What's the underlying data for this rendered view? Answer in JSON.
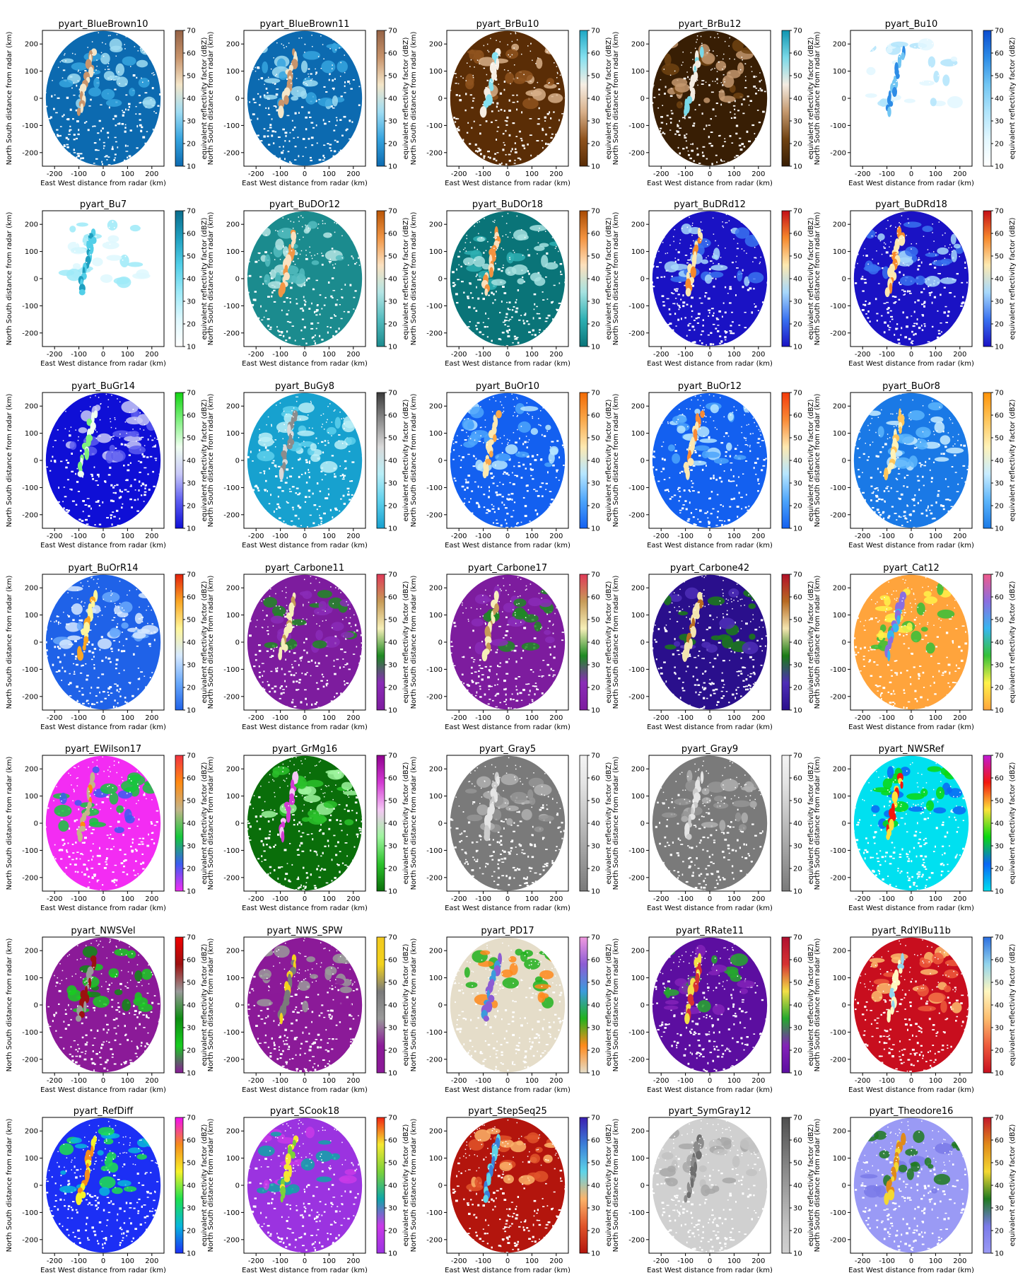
{
  "figure": {
    "xlabel": "East West distance from radar (km)",
    "ylabel": "North South distance from radar (km)",
    "colorbar_label": "equivalent reflectivity factor (dBZ)"
  },
  "chart_data": {
    "type": "heatmap",
    "description_of_field": "PPI radar reflectivity sweep rendered with 35 pyart colormaps",
    "xlim": [
      -250,
      250
    ],
    "ylim": [
      -250,
      250
    ],
    "xticks": [
      -200,
      -100,
      0,
      100,
      200
    ],
    "yticks": [
      -200,
      -100,
      0,
      100,
      200
    ],
    "xlabel": "East West distance from radar (km)",
    "ylabel": "North South distance from radar (km)",
    "colorbar": {
      "label": "equivalent reflectivity factor (dBZ)",
      "range": [
        10,
        70
      ],
      "ticks": [
        10,
        20,
        30,
        40,
        50,
        60,
        70
      ]
    },
    "panels": [
      {
        "title": "pyart_BlueBrown10",
        "colors": [
          "#0c6ab0",
          "#36a4df",
          "#9fdcf2",
          "#f4e6c9",
          "#c8946c",
          "#946245"
        ]
      },
      {
        "title": "pyart_BlueBrown11",
        "colors": [
          "#0c6ab0",
          "#36a4df",
          "#9fdcf2",
          "#f4e6c9",
          "#c8946c",
          "#946245"
        ]
      },
      {
        "title": "pyart_BrBu10",
        "colors": [
          "#5a2d06",
          "#8f531e",
          "#d8b08a",
          "#f6eee4",
          "#85e0ef",
          "#1ea7c4"
        ]
      },
      {
        "title": "pyart_BrBu12",
        "colors": [
          "#381e04",
          "#704312",
          "#c4986e",
          "#f4ece2",
          "#7ad9e8",
          "#0f95b0"
        ]
      },
      {
        "title": "pyart_Bu10",
        "colors": [
          "#ffffff",
          "#e2f7ff",
          "#b0e4fb",
          "#72c6f3",
          "#2d8ce6",
          "#0b4ccf"
        ]
      },
      {
        "title": "pyart_Bu7",
        "colors": [
          "#ffffff",
          "#def8fe",
          "#9deaf8",
          "#52cfe8",
          "#1f9fbf",
          "#0a6d8c"
        ]
      },
      {
        "title": "pyart_BuDOr12",
        "colors": [
          "#1b8b8e",
          "#54bcbf",
          "#b4e5e4",
          "#fbe1c0",
          "#f19646",
          "#b95506"
        ]
      },
      {
        "title": "pyart_BuDOr18",
        "colors": [
          "#0a7478",
          "#2eb0b3",
          "#a6e2e0",
          "#fde0bc",
          "#f39340",
          "#a84a02"
        ]
      },
      {
        "title": "pyart_BuDRd12",
        "colors": [
          "#1a12c4",
          "#3a72f0",
          "#a7d8fb",
          "#fde9b0",
          "#f6882c",
          "#c40f17"
        ]
      },
      {
        "title": "pyart_BuDRd18",
        "colors": [
          "#1a12c4",
          "#3a72f0",
          "#a7d8fb",
          "#fde9b0",
          "#f6882c",
          "#c40f17"
        ]
      },
      {
        "title": "pyart_BuGr14",
        "colors": [
          "#0f0fd6",
          "#5c5cf0",
          "#c8c8f8",
          "#f0fff0",
          "#7ef07e",
          "#13d413"
        ]
      },
      {
        "title": "pyart_BuGy8",
        "colors": [
          "#17a1cf",
          "#5ed0ec",
          "#b9eef7",
          "#d9d9d9",
          "#8c8c8c",
          "#3b3b3b"
        ]
      },
      {
        "title": "pyart_BuOr10",
        "colors": [
          "#1360f0",
          "#4ca4fb",
          "#b6e6ff",
          "#fde8b0",
          "#f9a84a",
          "#f26a04"
        ]
      },
      {
        "title": "pyart_BuOr12",
        "colors": [
          "#1360f0",
          "#4ca4fb",
          "#b6e6ff",
          "#fde8b0",
          "#f98a36",
          "#f43b0b"
        ]
      },
      {
        "title": "pyart_BuOr8",
        "colors": [
          "#1a79e6",
          "#5cb5fb",
          "#c8ecff",
          "#fff2b8",
          "#ffc55a",
          "#ff9308"
        ]
      },
      {
        "title": "pyart_BuOrR14",
        "colors": [
          "#1f62e8",
          "#6aa9fb",
          "#d6e9ff",
          "#fff69a",
          "#f9a624",
          "#e4200b"
        ]
      },
      {
        "title": "pyart_Carbone11",
        "colors": [
          "#7d1c9e",
          "#8a2cb7",
          "#1e8a22",
          "#f6efb8",
          "#c79b58",
          "#e03a58"
        ]
      },
      {
        "title": "pyart_Carbone17",
        "colors": [
          "#7d1c9e",
          "#8a2cb7",
          "#1e8a22",
          "#f6efb8",
          "#c79b58",
          "#e03a58"
        ]
      },
      {
        "title": "pyart_Carbone42",
        "colors": [
          "#2a0f8c",
          "#4e2eb7",
          "#1b7c16",
          "#f4e5b0",
          "#b76a22",
          "#b21028"
        ]
      },
      {
        "title": "pyart_Cat12",
        "colors": [
          "#ffa43c",
          "#fff24a",
          "#35c138",
          "#37b6f0",
          "#8a6ee0",
          "#f05a8c"
        ]
      },
      {
        "title": "pyart_EWilson17",
        "colors": [
          "#f32cf3",
          "#3b5df0",
          "#15c83b",
          "#c4b58a",
          "#ff8a12",
          "#f23240"
        ]
      },
      {
        "title": "pyart_GrMg16",
        "colors": [
          "#0a6e0a",
          "#2cc22c",
          "#9ef59e",
          "#f5c6f5",
          "#d23ad2",
          "#8f008f"
        ]
      },
      {
        "title": "pyart_Gray5",
        "colors": [
          "#7a7a7a",
          "#959595",
          "#b0b0b0",
          "#cbcbcb",
          "#e4e4e4",
          "#f4f4f4"
        ]
      },
      {
        "title": "pyart_Gray9",
        "colors": [
          "#7a7a7a",
          "#959595",
          "#b0b0b0",
          "#cbcbcb",
          "#e4e4e4",
          "#f4f4f4"
        ]
      },
      {
        "title": "pyart_NWSRef",
        "colors": [
          "#00e0f0",
          "#0a66f5",
          "#0bd810",
          "#fde23a",
          "#f2170d",
          "#c11ad6"
        ]
      },
      {
        "title": "pyart_NWSVel",
        "colors": [
          "#8b1a98",
          "#18cc20",
          "#0e8d12",
          "#9a9a9a",
          "#9c1010",
          "#f20000"
        ]
      },
      {
        "title": "pyart_NWS_SPW",
        "colors": [
          "#8b1a98",
          "#8b1a98",
          "#9a9a9a",
          "#7a7a7a",
          "#f2d21e",
          "#f2c91e"
        ]
      },
      {
        "title": "pyart_PD17",
        "colors": [
          "#e5ddc9",
          "#ff8a1c",
          "#22b21e",
          "#3c9bdc",
          "#8c5cd4",
          "#f09adf"
        ]
      },
      {
        "title": "pyart_RRate11",
        "colors": [
          "#5c0ea0",
          "#8322b8",
          "#25a82d",
          "#f3e047",
          "#d63232",
          "#b01030"
        ]
      },
      {
        "title": "pyart_RdYlBu11b",
        "colors": [
          "#c80e1e",
          "#ed5b3c",
          "#fdbd6e",
          "#fff7c0",
          "#93d4ec",
          "#2b6fe0"
        ]
      },
      {
        "title": "pyart_RefDiff",
        "colors": [
          "#1c2ff5",
          "#08b6dc",
          "#1ee04e",
          "#f6f22a",
          "#f58c1c",
          "#f20ef2"
        ]
      },
      {
        "title": "pyart_SCook18",
        "colors": [
          "#9b33e0",
          "#c93ae8",
          "#0fa6a8",
          "#7bd13a",
          "#f5e832",
          "#f22412"
        ]
      },
      {
        "title": "pyart_StepSeq25",
        "colors": [
          "#b3150d",
          "#e0542a",
          "#fbb36a",
          "#5ed4e8",
          "#3b7fd8",
          "#3b1fb0"
        ]
      },
      {
        "title": "pyart_SymGray12",
        "colors": [
          "#d0d0d0",
          "#c2c2c2",
          "#a8a8a8",
          "#8c8c8c",
          "#6e6e6e",
          "#4e4e4e"
        ]
      },
      {
        "title": "pyart_Theodore16",
        "colors": [
          "#9a9af5",
          "#7a7ae8",
          "#207a20",
          "#f4d832",
          "#e08a1a",
          "#c2182c"
        ]
      }
    ]
  }
}
